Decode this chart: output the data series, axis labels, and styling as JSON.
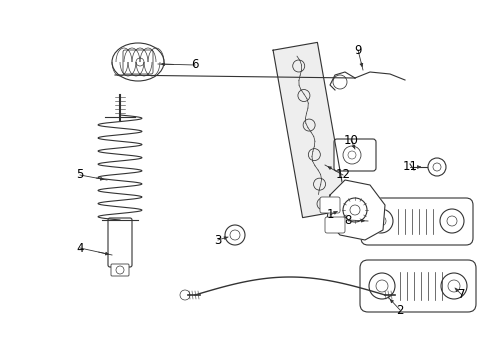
{
  "bg_color": "#ffffff",
  "line_color": "#333333",
  "label_color": "#000000",
  "fig_width": 4.89,
  "fig_height": 3.6,
  "dpi": 100
}
